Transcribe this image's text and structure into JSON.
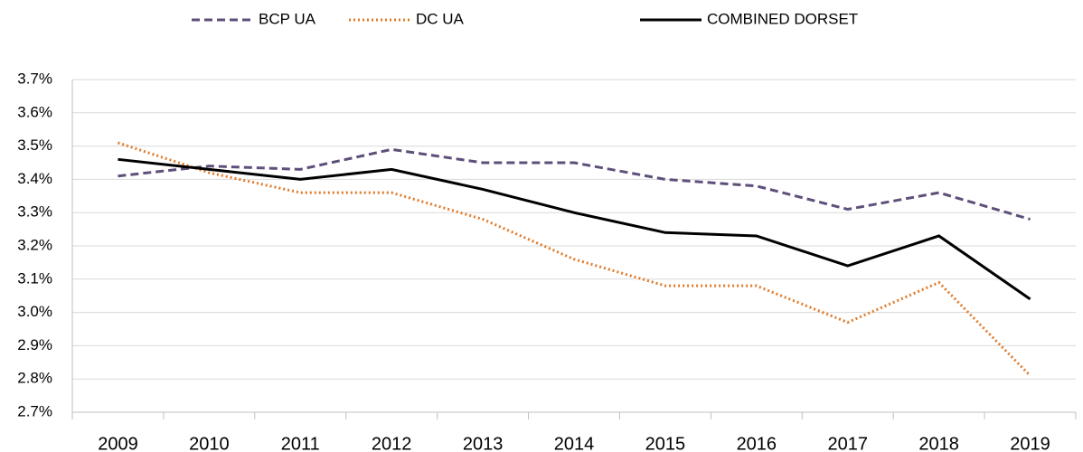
{
  "chart_data": {
    "type": "line",
    "categories": [
      "2009",
      "2010",
      "2011",
      "2012",
      "2013",
      "2014",
      "2015",
      "2016",
      "2017",
      "2018",
      "2019"
    ],
    "series": [
      {
        "name": "BCP UA",
        "color": "#5e4f7a",
        "dash": "dashed",
        "values": [
          3.41,
          3.44,
          3.43,
          3.49,
          3.45,
          3.45,
          3.4,
          3.38,
          3.31,
          3.36,
          3.28
        ]
      },
      {
        "name": "DC UA",
        "color": "#e07b2b",
        "dash": "dotted",
        "values": [
          3.51,
          3.42,
          3.36,
          3.36,
          3.28,
          3.16,
          3.08,
          3.08,
          2.97,
          3.09,
          2.81
        ]
      },
      {
        "name": "COMBINED DORSET",
        "color": "#000000",
        "dash": "solid",
        "values": [
          3.46,
          3.43,
          3.4,
          3.43,
          3.37,
          3.3,
          3.24,
          3.23,
          3.14,
          3.23,
          3.04
        ]
      }
    ],
    "ylim": [
      2.7,
      3.7
    ],
    "yticks": [
      {
        "value": 2.7,
        "label": "2.7%"
      },
      {
        "value": 2.8,
        "label": "2.8%"
      },
      {
        "value": 2.9,
        "label": "2.9%"
      },
      {
        "value": 3.0,
        "label": "3.0%"
      },
      {
        "value": 3.1,
        "label": "3.1%"
      },
      {
        "value": 3.2,
        "label": "3.2%"
      },
      {
        "value": 3.3,
        "label": "3.3%"
      },
      {
        "value": 3.4,
        "label": "3.4%"
      },
      {
        "value": 3.5,
        "label": "3.5%"
      },
      {
        "value": 3.6,
        "label": "3.6%"
      },
      {
        "value": 3.7,
        "label": "3.7%"
      }
    ],
    "grid": true,
    "legend": "top"
  }
}
